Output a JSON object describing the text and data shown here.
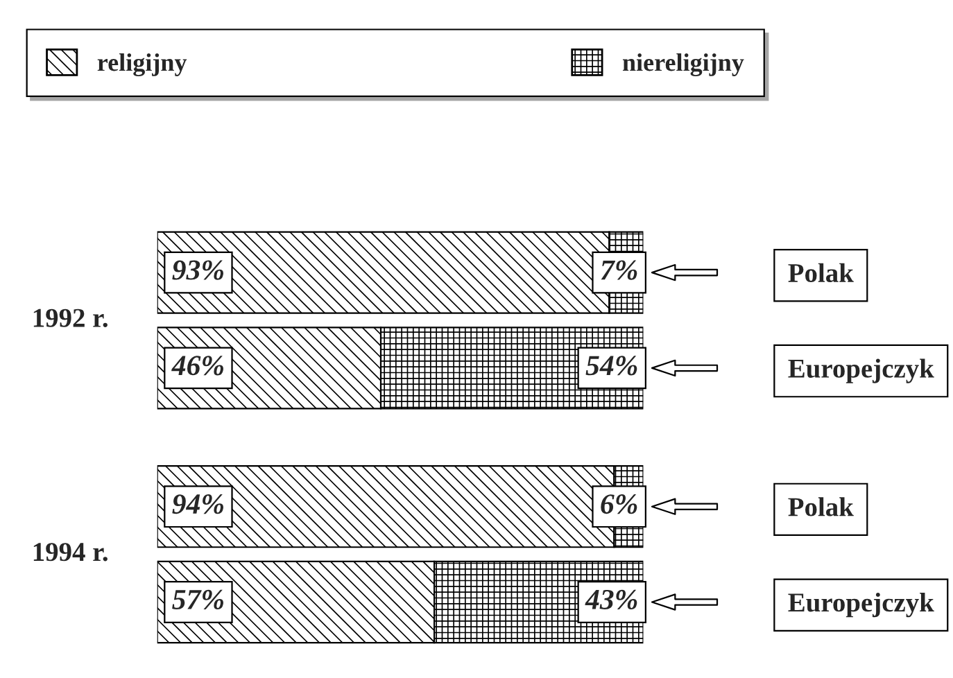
{
  "chart_data": {
    "type": "bar",
    "orientation": "horizontal",
    "stacked": true,
    "legend": "top",
    "grid": false,
    "categories": [
      "Polak",
      "Europejczyk",
      "Polak",
      "Europejczyk"
    ],
    "annotations": [
      "1992 r.",
      "1994 r."
    ],
    "series": [
      {
        "name": "religijny",
        "color": "#000000",
        "values": [
          93,
          46,
          94,
          57
        ],
        "value_labels": [
          "93%",
          "46%",
          "94%",
          "57%"
        ]
      },
      {
        "name": "niereligijny",
        "color": "#000000",
        "values": [
          7,
          54,
          6,
          43
        ],
        "value_labels": [
          "7%",
          "54%",
          "6%",
          "43%"
        ]
      }
    ]
  }
}
